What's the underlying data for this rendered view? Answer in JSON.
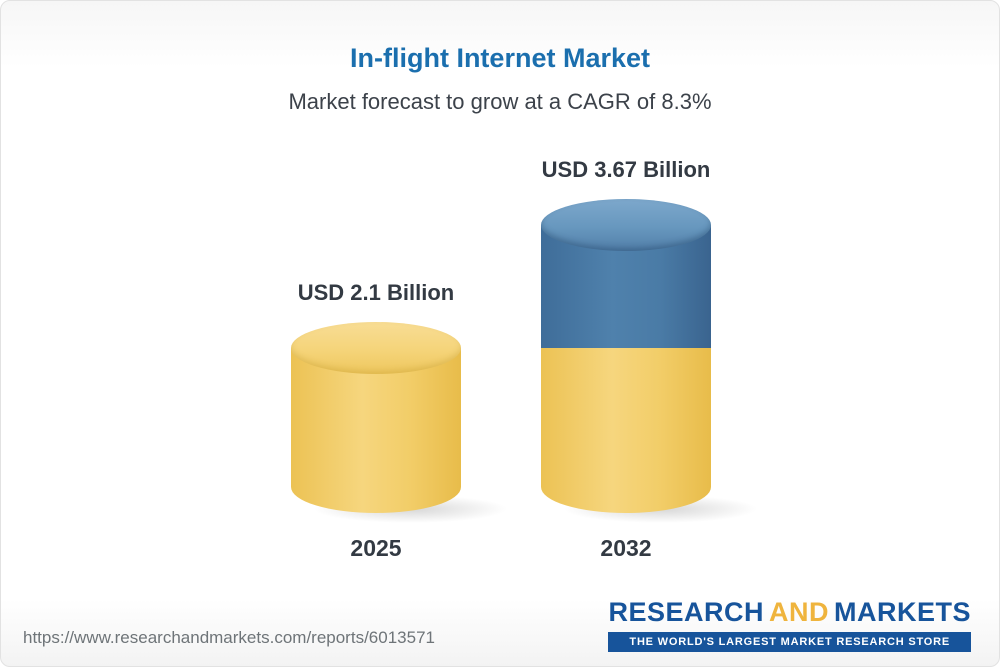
{
  "header": {
    "title": "In-flight Internet Market",
    "subtitle": "Market forecast to grow at a CAGR of 8.3%"
  },
  "chart_data": {
    "type": "bar",
    "title": "In-flight Internet Market",
    "subtitle": "Market forecast to grow at a CAGR of 8.3%",
    "unit": "USD Billion",
    "cagr_percent": 8.3,
    "categories": [
      "2025",
      "2032"
    ],
    "values": [
      2.1,
      3.67
    ],
    "value_labels": [
      "USD 2.1 Billion",
      "USD 3.67 Billion"
    ],
    "series": [
      {
        "name": "base-2025-value",
        "color": "#f2cd62",
        "values": [
          2.1,
          2.1
        ]
      },
      {
        "name": "growth-to-2032",
        "color": "#4a7ba6",
        "values": [
          0,
          1.57
        ]
      }
    ],
    "ylim": [
      0,
      3.67
    ],
    "grid": false,
    "legend": "none"
  },
  "footer": {
    "url": "https://www.researchandmarkets.com/reports/6013571",
    "logo": {
      "part1": "RESEARCH",
      "part2": "AND",
      "part3": "MARKETS",
      "tagline": "THE WORLD'S LARGEST MARKET RESEARCH STORE"
    },
    "colors": {
      "logo_blue": "#17549b",
      "logo_gold": "#efb43d"
    }
  }
}
